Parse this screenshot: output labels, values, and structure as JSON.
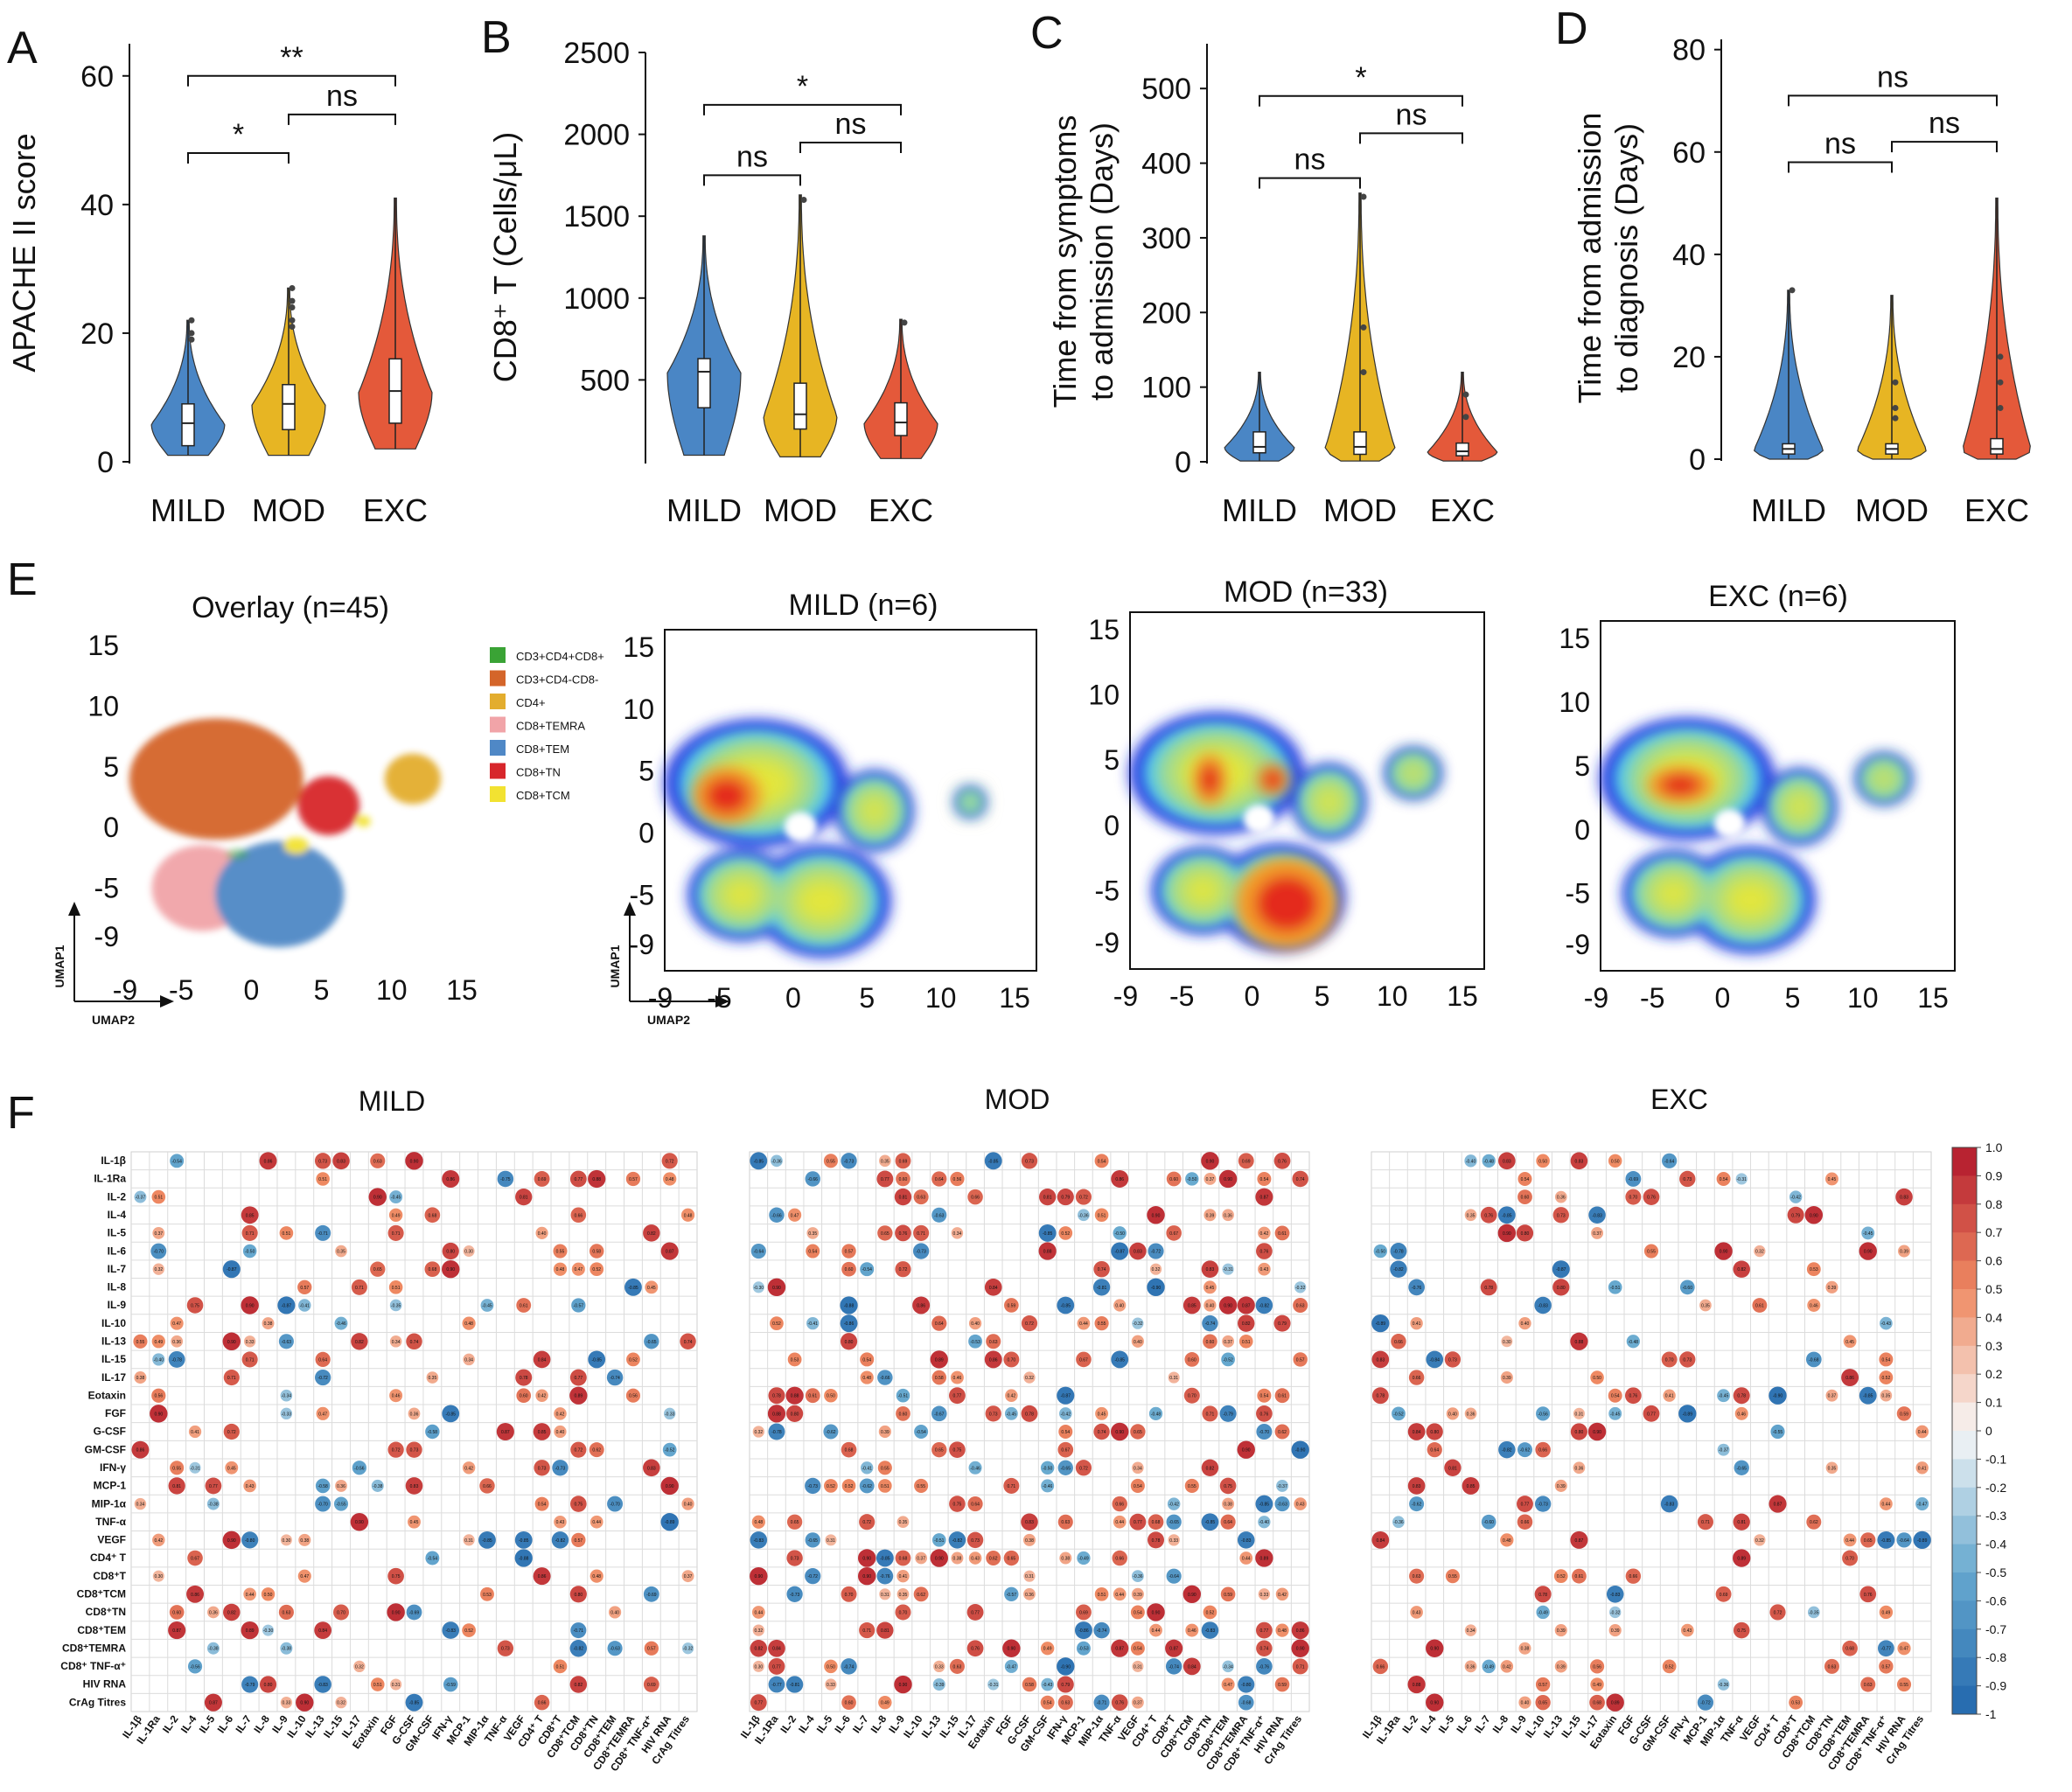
{
  "figure_panels": [
    "A",
    "B",
    "C",
    "D",
    "E",
    "F"
  ],
  "colors": {
    "mild": "#4a86c5",
    "mod": "#e7b523",
    "exc": "#e4593a"
  },
  "chart_data": [
    {
      "panel": "A",
      "type": "violin",
      "ylabel": "APACHE II score",
      "ylim": [
        0,
        65
      ],
      "yticks": [
        0,
        20,
        40,
        60
      ],
      "categories": [
        "MILD",
        "MOD",
        "EXC"
      ],
      "series": [
        {
          "name": "MILD",
          "min": 1,
          "q1": 2.5,
          "median": 6,
          "q3": 9,
          "max": 22,
          "outliers": [
            19,
            20,
            22
          ]
        },
        {
          "name": "MOD",
          "min": 1,
          "q1": 5,
          "median": 9,
          "q3": 12,
          "max": 27,
          "outliers": [
            21,
            22,
            24,
            25,
            27
          ]
        },
        {
          "name": "EXC",
          "min": 2,
          "q1": 6,
          "median": 11,
          "q3": 16,
          "max": 41,
          "outliers": []
        }
      ],
      "comparisons": [
        {
          "a": 0,
          "b": 1,
          "label": "*",
          "y": 48
        },
        {
          "a": 1,
          "b": 2,
          "label": "ns",
          "y": 54
        },
        {
          "a": 0,
          "b": 2,
          "label": "**",
          "y": 60
        }
      ]
    },
    {
      "panel": "B",
      "type": "violin",
      "ylabel": "CD8⁺ T (Cells/μL)",
      "ylim": [
        0,
        2500
      ],
      "yticks": [
        500,
        1000,
        1500,
        2000,
        2500
      ],
      "categories": [
        "MILD",
        "MOD",
        "EXC"
      ],
      "series": [
        {
          "name": "MILD",
          "min": 40,
          "q1": 330,
          "median": 550,
          "q3": 630,
          "max": 1380,
          "outliers": []
        },
        {
          "name": "MOD",
          "min": 30,
          "q1": 200,
          "median": 290,
          "q3": 480,
          "max": 1630,
          "outliers": [
            1600
          ]
        },
        {
          "name": "EXC",
          "min": 20,
          "q1": 160,
          "median": 240,
          "q3": 360,
          "max": 870,
          "outliers": [
            850
          ]
        }
      ],
      "comparisons": [
        {
          "a": 0,
          "b": 1,
          "label": "ns",
          "y": 1750
        },
        {
          "a": 1,
          "b": 2,
          "label": "ns",
          "y": 1950
        },
        {
          "a": 0,
          "b": 2,
          "label": "*",
          "y": 2180
        }
      ]
    },
    {
      "panel": "C",
      "type": "violin",
      "ylabel": "Time from symptoms to admission (Days)",
      "ylim": [
        0,
        560
      ],
      "yticks": [
        0,
        100,
        200,
        300,
        400,
        500
      ],
      "categories": [
        "MILD",
        "MOD",
        "EXC"
      ],
      "series": [
        {
          "name": "MILD",
          "min": 1,
          "q1": 12,
          "median": 20,
          "q3": 40,
          "max": 120,
          "outliers": []
        },
        {
          "name": "MOD",
          "min": 1,
          "q1": 10,
          "median": 20,
          "q3": 40,
          "max": 360,
          "outliers": [
            120,
            180,
            355
          ]
        },
        {
          "name": "EXC",
          "min": 1,
          "q1": 8,
          "median": 14,
          "q3": 25,
          "max": 120,
          "outliers": [
            60,
            90
          ]
        }
      ],
      "comparisons": [
        {
          "a": 0,
          "b": 1,
          "label": "ns",
          "y": 380
        },
        {
          "a": 1,
          "b": 2,
          "label": "ns",
          "y": 440
        },
        {
          "a": 0,
          "b": 2,
          "label": "*",
          "y": 490
        }
      ]
    },
    {
      "panel": "D",
      "type": "violin",
      "ylabel": "Time from admission to diagnosis (Days)",
      "ylim": [
        0,
        82
      ],
      "yticks": [
        0,
        20,
        40,
        60,
        80
      ],
      "categories": [
        "MILD",
        "MOD",
        "EXC"
      ],
      "series": [
        {
          "name": "MILD",
          "min": 0,
          "q1": 1,
          "median": 2,
          "q3": 3,
          "max": 33,
          "outliers": [
            33
          ]
        },
        {
          "name": "MOD",
          "min": 0,
          "q1": 1,
          "median": 2,
          "q3": 3,
          "max": 32,
          "outliers": [
            8,
            10,
            15
          ]
        },
        {
          "name": "EXC",
          "min": 0,
          "q1": 1,
          "median": 2,
          "q3": 4,
          "max": 51,
          "outliers": [
            10,
            15,
            20
          ]
        }
      ],
      "comparisons": [
        {
          "a": 0,
          "b": 1,
          "label": "ns",
          "y": 58
        },
        {
          "a": 1,
          "b": 2,
          "label": "ns",
          "y": 62
        },
        {
          "a": 0,
          "b": 2,
          "label": "ns",
          "y": 71
        }
      ]
    },
    {
      "panel": "E",
      "type": "scatter",
      "titles": [
        "Overlay (n=45)",
        "MILD (n=6)",
        "MOD (n=33)",
        "EXC (n=6)"
      ],
      "xticks": [
        -9,
        -5,
        0,
        5,
        10,
        15
      ],
      "yticks": [
        15,
        10,
        5,
        0,
        -5,
        -9
      ],
      "xlabel": "UMAP2",
      "ylabel": "UMAP1",
      "legend": [
        {
          "label": "CD3+CD4+CD8+",
          "color": "#3aa335"
        },
        {
          "label": "CD3+CD4-CD8-",
          "color": "#d4652a"
        },
        {
          "label": "CD4+",
          "color": "#e3ad2e"
        },
        {
          "label": "CD8+TEMRA",
          "color": "#f1a4a8"
        },
        {
          "label": "CD8+TEM",
          "color": "#4f88c6"
        },
        {
          "label": "CD8+TN",
          "color": "#d7262b"
        },
        {
          "label": "CD8+TCM",
          "color": "#f2e231"
        }
      ]
    },
    {
      "panel": "F",
      "type": "heatmap",
      "titles": [
        "MILD",
        "MOD",
        "EXC"
      ],
      "row_labels": [
        "IL-1β",
        "IL-1Ra",
        "IL-2",
        "IL-4",
        "IL-5",
        "IL-6",
        "IL-7",
        "IL-8",
        "IL-9",
        "IL-10",
        "IL-13",
        "IL-15",
        "IL-17",
        "Eotaxin",
        "FGF",
        "G-CSF",
        "GM-CSF",
        "IFN-γ",
        "MCP-1",
        "MIP-1α",
        "TNF-α",
        "VEGF",
        "CD4⁺ T",
        "CD8⁺T",
        "CD8⁺TCM",
        "CD8⁺TN",
        "CD8⁺TEM",
        "CD8⁺TEMRA",
        "CD8⁺ TNF-α⁺",
        "HIV RNA",
        "CrAg Titres"
      ],
      "col_labels": [
        "IL-1β",
        "IL-1Ra",
        "IL-2",
        "IL-4",
        "IL-5",
        "IL-6",
        "IL-7",
        "IL-8",
        "IL-9",
        "IL-10",
        "IL-13",
        "IL-15",
        "IL-17",
        "Eotaxin",
        "FGF",
        "G-CSF",
        "GM-CSF",
        "IFN-γ",
        "MCP-1",
        "MIP-1α",
        "TNF-α",
        "VEGF",
        "CD4⁺ T",
        "CD8⁺T",
        "CD8⁺TCM",
        "CD8⁺TN",
        "CD8⁺TEM",
        "CD8⁺TEMRA",
        "CD8⁺ TNF-α⁺",
        "HIV RNA",
        "CrAg Titres"
      ],
      "colorbar_ticks": [
        "1.0",
        "0.9",
        "0.8",
        "0.7",
        "0.6",
        "0.5",
        "0.4",
        "0.3",
        "0.2",
        "0.1",
        "0",
        "-0.1",
        "-0.2",
        "-0.3",
        "-0.4",
        "-0.5",
        "-0.6",
        "-0.7",
        "-0.8",
        "-0.9",
        "-1"
      ],
      "range": [
        -1,
        1
      ]
    }
  ]
}
